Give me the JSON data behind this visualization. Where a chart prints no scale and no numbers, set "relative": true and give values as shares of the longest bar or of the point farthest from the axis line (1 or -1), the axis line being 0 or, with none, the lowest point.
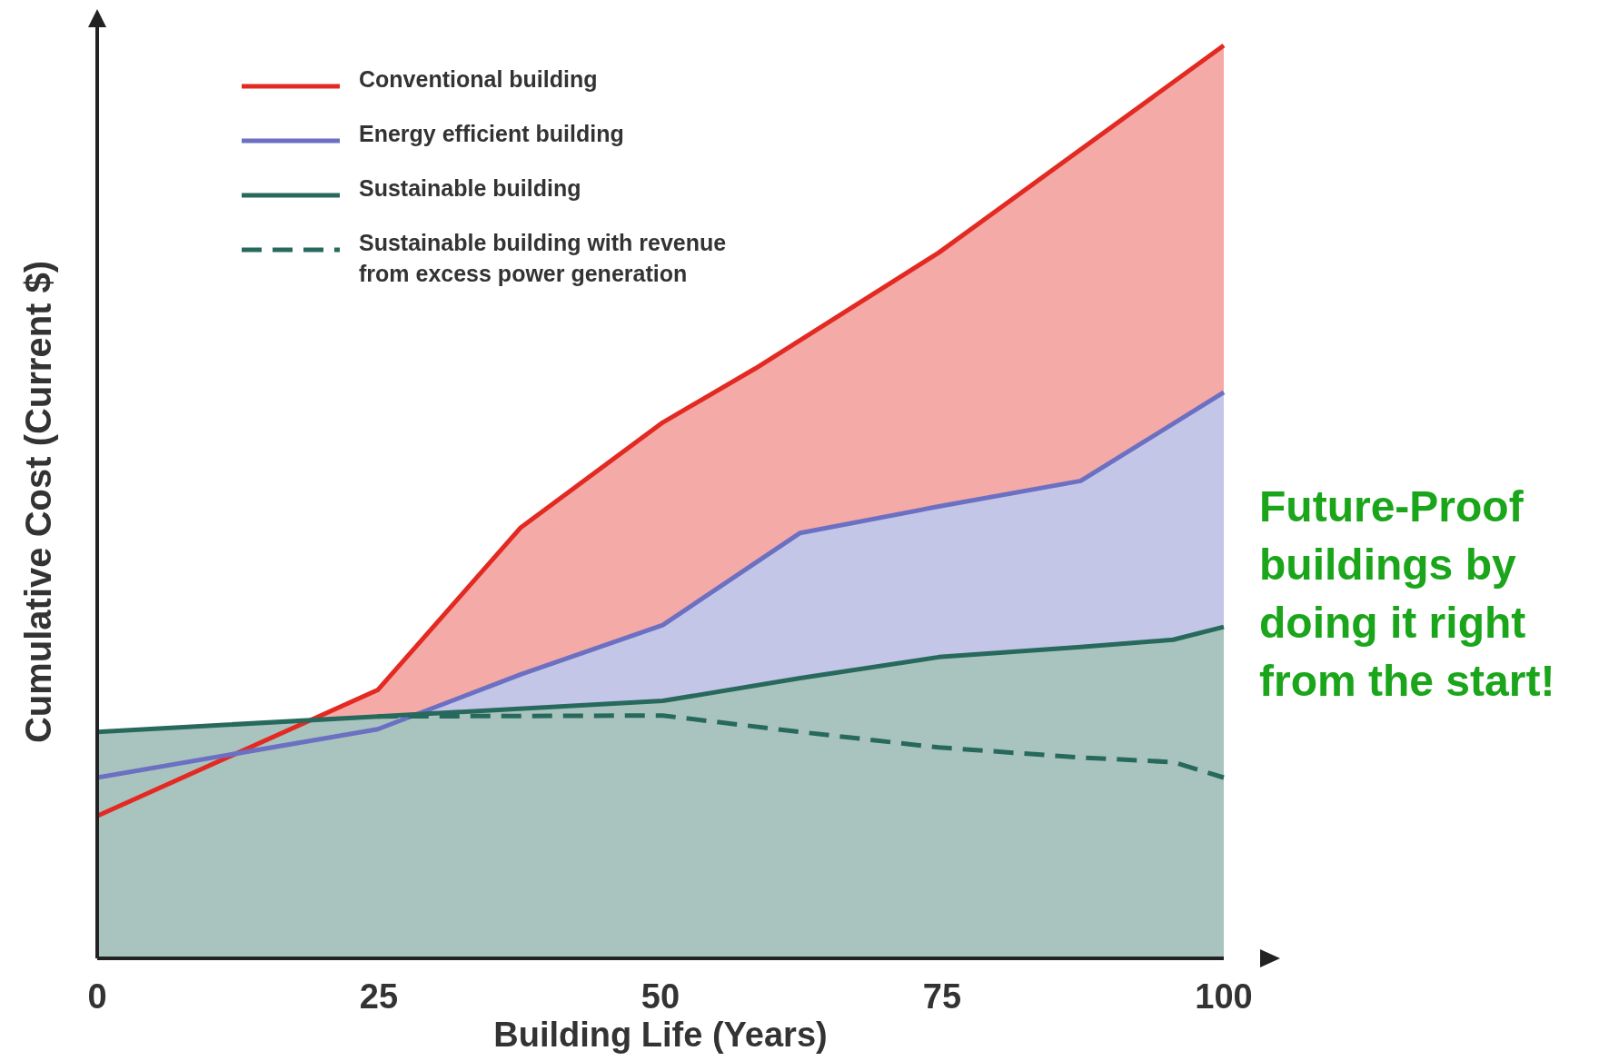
{
  "chart_data": {
    "type": "line",
    "relative": true,
    "xlabel": "Building Life (Years)",
    "ylabel": "Cumulative Cost (Current $)",
    "xlim": [
      0,
      100
    ],
    "xticks": [
      0,
      25,
      50,
      75,
      100
    ],
    "legend": "top left",
    "grid": false,
    "annotations": [
      "Future-Proof buildings by doing it right from the start!"
    ],
    "series": [
      {
        "name": "Conventional building",
        "type": "area",
        "color": "#e32a22",
        "x": [
          0,
          24.9,
          37.6,
          50.2,
          58.4,
          74.7,
          100
        ],
        "values": [
          0.156,
          0.294,
          0.472,
          0.587,
          0.646,
          0.773,
          1
        ]
      },
      {
        "name": "Energy efficient building",
        "type": "area",
        "color": "#6b70c2",
        "x": [
          0,
          24.9,
          37.6,
          50.2,
          62.4,
          74.7,
          87.3,
          100
        ],
        "values": [
          0.198,
          0.251,
          0.311,
          0.365,
          0.466,
          0.495,
          0.523,
          0.62
        ]
      },
      {
        "name": "Sustainable building",
        "type": "area",
        "color": "#27695c",
        "x": [
          0,
          24.9,
          50.2,
          62.4,
          74.7,
          87.3,
          95.5,
          100
        ],
        "values": [
          0.248,
          0.265,
          0.282,
          0.307,
          0.33,
          0.341,
          0.349,
          0.363
        ]
      },
      {
        "name": "Sustainable building with revenue from excess power generation",
        "type": "line",
        "line_style": "dashed",
        "color": "#27695c",
        "x": [
          24.9,
          50.2,
          62.4,
          74.7,
          87.3,
          95.5,
          100
        ],
        "values": [
          0.265,
          0.266,
          0.248,
          0.231,
          0.22,
          0.215,
          0.198
        ]
      }
    ]
  }
}
